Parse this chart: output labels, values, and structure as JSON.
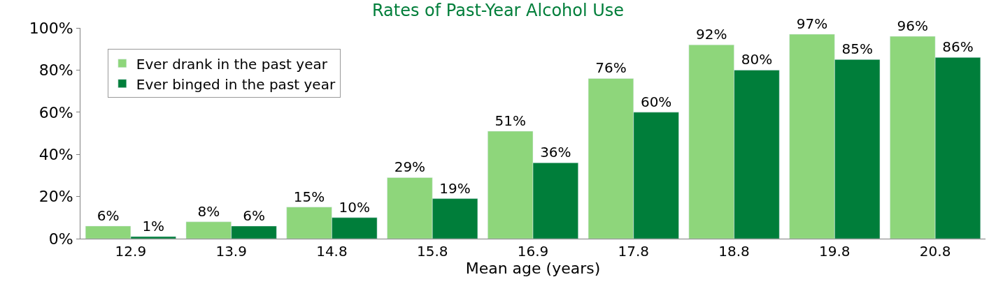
{
  "chart_data": {
    "type": "bar",
    "title": "Rates of Past-Year Alcohol Use",
    "xlabel": "Mean age (years)",
    "categories": [
      "12.9",
      "13.9",
      "14.8",
      "15.8",
      "16.9",
      "17.8",
      "18.8",
      "19.8",
      "20.8"
    ],
    "series": [
      {
        "name": "Ever drank in the past year",
        "color": "#8ed67b",
        "values": [
          6,
          8,
          15,
          29,
          51,
          76,
          92,
          97,
          96
        ],
        "value_labels": [
          "6%",
          "8%",
          "15%",
          "29%",
          "51%",
          "76%",
          "92%",
          "97%",
          "96%"
        ]
      },
      {
        "name": "Ever binged in the past year",
        "color": "#007e3a",
        "values": [
          1,
          6,
          10,
          19,
          36,
          60,
          80,
          85,
          86
        ],
        "value_labels": [
          "1%",
          "6%",
          "10%",
          "19%",
          "36%",
          "60%",
          "80%",
          "85%",
          "86%"
        ]
      }
    ],
    "ylim": [
      0,
      100
    ],
    "yticks": [
      {
        "value": 0,
        "label": "0%"
      },
      {
        "value": 20,
        "label": "20%"
      },
      {
        "value": 40,
        "label": "40%"
      },
      {
        "value": 60,
        "label": "60%"
      },
      {
        "value": 80,
        "label": "80%"
      },
      {
        "value": 100,
        "label": "100%"
      }
    ],
    "legend": "top left"
  }
}
